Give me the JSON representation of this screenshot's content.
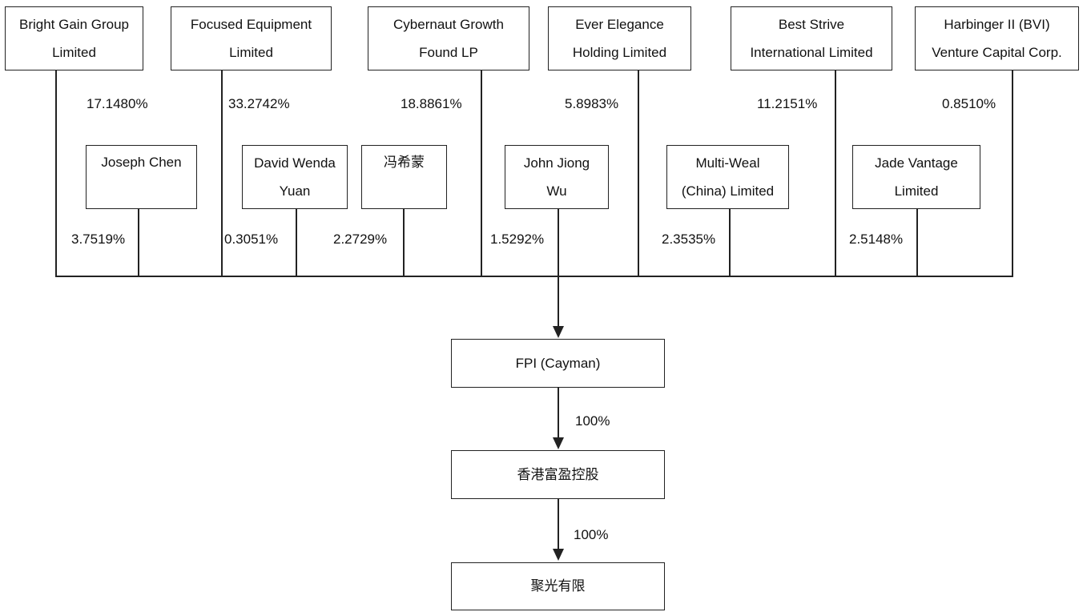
{
  "top_shareholders": [
    {
      "line1": "Bright Gain Group",
      "line2": "Limited",
      "pct": "17.1480%"
    },
    {
      "line1": "Focused Equipment",
      "line2": "Limited",
      "pct": "33.2742%"
    },
    {
      "line1": "Cybernaut Growth",
      "line2": "Found LP",
      "pct": "18.8861%"
    },
    {
      "line1": "Ever Elegance",
      "line2": "Holding Limited",
      "pct": "5.8983%"
    },
    {
      "line1": "Best Strive",
      "line2": "International Limited",
      "pct": "11.2151%"
    },
    {
      "line1": "Harbinger II (BVI)",
      "line2": "Venture Capital Corp.",
      "pct": "0.8510%"
    }
  ],
  "middle_shareholders": [
    {
      "line1": "Joseph Chen",
      "line2": "",
      "pct": "3.7519%"
    },
    {
      "line1": "David Wenda",
      "line2": "Yuan",
      "pct": "0.3051%"
    },
    {
      "line1": "冯希蒙",
      "line2": "",
      "pct": "2.2729%"
    },
    {
      "line1": "John Jiong",
      "line2": "Wu",
      "pct": "1.5292%"
    },
    {
      "line1": "Multi-Weal",
      "line2": "(China) Limited",
      "pct": "2.3535%"
    },
    {
      "line1": "Jade Vantage",
      "line2": "Limited",
      "pct": "2.5148%"
    }
  ],
  "chain": [
    {
      "label": "FPI (Cayman)"
    },
    {
      "label": "香港富盈控股",
      "pct_from_above": "100%"
    },
    {
      "label": "聚光有限",
      "pct_from_above": "100%"
    }
  ]
}
